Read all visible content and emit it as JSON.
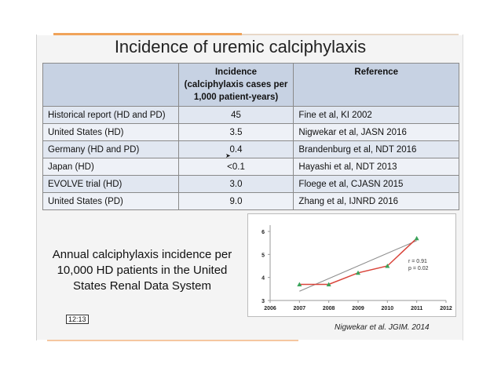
{
  "title": "Incidence of uremic calciphylaxis",
  "table": {
    "headers": [
      "",
      "Incidence (calciphylaxis cases per 1,000 patient-years)",
      "Reference"
    ],
    "header_lines": [
      "Incidence",
      "(calciphylaxis cases per",
      "1,000 patient-years)"
    ],
    "rows": [
      {
        "population": "Historical report (HD and PD)",
        "incidence": "45",
        "reference": "Fine et al, KI 2002"
      },
      {
        "population": "United States (HD)",
        "incidence": "3.5",
        "reference": "Nigwekar et al, JASN 2016"
      },
      {
        "population": "Germany (HD and PD)",
        "incidence": "0.4",
        "reference": "Brandenburg et al, NDT 2016"
      },
      {
        "population": "Japan (HD)",
        "incidence": "<0.1",
        "reference": "Hayashi et al, NDT 2013"
      },
      {
        "population": "EVOLVE trial (HD)",
        "incidence": "3.0",
        "reference": "Floege et al, CJASN 2015"
      },
      {
        "population": "United States (PD)",
        "incidence": "9.0",
        "reference": "Zhang et al, IJNRD 2016"
      }
    ]
  },
  "caption": {
    "line1": "Annual calciphylaxis incidence per",
    "line2": "10,000 HD patients in the United",
    "line3": "States Renal Data System"
  },
  "timestamp": "12:13",
  "chart_data": {
    "type": "line",
    "x": [
      2007,
      2008,
      2009,
      2010,
      2011
    ],
    "series": [
      {
        "values": [
          3.7,
          3.7,
          4.2,
          4.5,
          5.7
        ],
        "color": "#d9443a",
        "marker_color": "#3aa35a"
      }
    ],
    "trendline": {
      "x": [
        2007,
        2011
      ],
      "y": [
        3.4,
        5.6
      ],
      "color": "#8c8c8c"
    },
    "x_ticks": [
      "2006",
      "2007",
      "2008",
      "2009",
      "2010",
      "2011",
      "2012"
    ],
    "y_ticks": [
      "3",
      "4",
      "5",
      "6"
    ],
    "xlim": [
      2006,
      2012
    ],
    "ylim": [
      3,
      6
    ],
    "annotation_r": "r = 0.91",
    "annotation_p": "p = 0.02",
    "grid": false
  },
  "chart_reference": "Nigwekar et al. JGIM. 2014",
  "colors": {
    "header_bg": "#c7d2e3",
    "row_bg": "#e1e7f1",
    "accent": "#f0a35a"
  },
  "icons": {
    "cursor": "mouse-pointer-icon"
  }
}
